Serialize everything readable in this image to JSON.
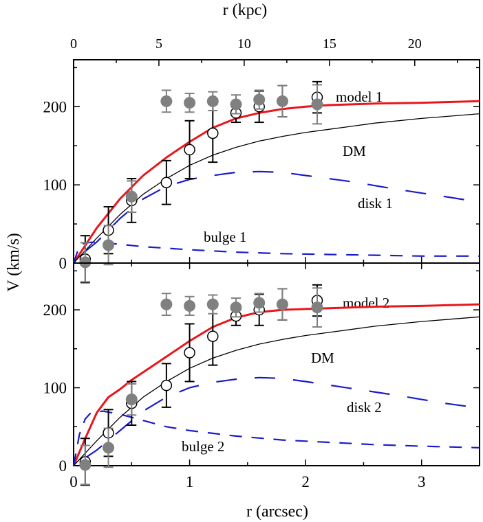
{
  "chart_data": {
    "type": "line",
    "layout": "two vertically stacked panels sharing x axes",
    "x_bottom": {
      "label": "r (arcsec)",
      "range": [
        0,
        3.5
      ],
      "ticks": [
        "0",
        "1",
        "2",
        "3"
      ]
    },
    "x_top": {
      "label": "r (kpc)",
      "range_arcsec_equiv": [
        0,
        3.5
      ],
      "kpc_per_arcsec": 6.8,
      "ticks": [
        "0",
        "5",
        "10",
        "15",
        "20"
      ]
    },
    "y_axis": {
      "label": "V (km/s)",
      "range": [
        0,
        260
      ],
      "ticks": [
        "0",
        "100",
        "200"
      ]
    },
    "panels": [
      {
        "id": "panel-1",
        "series": [
          {
            "name": "model 1",
            "style": "thick-red-solid",
            "color": "#e8161b",
            "x": [
              0,
              0.2,
              0.4,
              0.6,
              0.8,
              1.0,
              1.2,
              1.4,
              1.6,
              1.8,
              2.0,
              2.2,
              2.6,
              3.0,
              3.5
            ],
            "y": [
              0,
              45,
              82,
              112,
              135,
              155,
              173,
              185,
              192,
              197,
              200,
              202,
              204,
              205,
              207
            ]
          },
          {
            "name": "DM",
            "style": "thin-black-solid",
            "color": "#000000",
            "x": [
              0,
              0.2,
              0.4,
              0.6,
              0.8,
              1.0,
              1.2,
              1.4,
              1.6,
              1.8,
              2.0,
              2.2,
              2.6,
              3.0,
              3.5
            ],
            "y": [
              0,
              32,
              62,
              88,
              108,
              125,
              138,
              148,
              156,
              162,
              167,
              171,
              179,
              185,
              191
            ]
          },
          {
            "name": "disk 1",
            "style": "long-dash-blue",
            "color": "#1a1acc",
            "x": [
              0.1,
              0.2,
              0.4,
              0.6,
              0.8,
              1.0,
              1.2,
              1.4,
              1.6,
              1.8,
              2.0,
              2.4,
              2.8,
              3.2,
              3.5
            ],
            "y": [
              15,
              27,
              57,
              82,
              98,
              107,
              112,
              116,
              117,
              116,
              112,
              104,
              94,
              85,
              78
            ]
          },
          {
            "name": "bulge 1",
            "style": "dash-blue",
            "color": "#1a1acc",
            "x": [
              0,
              0.05,
              0.1,
              0.2,
              0.4,
              0.6,
              0.8,
              1.0,
              1.4,
              1.8,
              2.2,
              2.6,
              3.0,
              3.5
            ],
            "y": [
              0,
              22,
              26,
              27,
              24,
              21,
              19,
              17,
              14,
              12,
              11,
              10,
              9,
              9
            ]
          }
        ],
        "points_open": {
          "name": "open circles",
          "x": [
            0.1,
            0.3,
            0.5,
            0.8,
            1.0,
            1.2,
            1.4,
            1.6,
            1.8,
            2.1
          ],
          "y": [
            5,
            42,
            80,
            103,
            145,
            166,
            192,
            200,
            207,
            212
          ],
          "err": [
            30,
            30,
            28,
            28,
            37,
            37,
            12,
            20,
            20,
            20
          ]
        },
        "points_filled": {
          "name": "filled circles",
          "x": [
            0.1,
            0.3,
            0.5,
            0.8,
            1.0,
            1.2,
            1.4,
            1.6,
            1.8,
            2.1
          ],
          "y": [
            1,
            23,
            85,
            207,
            205,
            207,
            203,
            209,
            207,
            203
          ],
          "err": [
            25,
            25,
            20,
            14,
            12,
            12,
            12,
            12,
            20,
            25
          ]
        },
        "annotations": [
          "model 1",
          "DM",
          "disk 1",
          "bulge 1"
        ]
      },
      {
        "id": "panel-2",
        "series": [
          {
            "name": "model 2",
            "style": "thick-red-solid",
            "color": "#e8161b",
            "x": [
              0,
              0.1,
              0.2,
              0.3,
              0.4,
              0.5,
              0.8,
              1.0,
              1.2,
              1.4,
              1.6,
              1.8,
              2.0,
              2.2,
              2.6,
              3.0,
              3.5
            ],
            "y": [
              0,
              35,
              68,
              88,
              98,
              110,
              140,
              160,
              178,
              190,
              197,
              200,
              201,
              202,
              204,
              205,
              207
            ]
          },
          {
            "name": "DM",
            "style": "thin-black-solid",
            "color": "#000000",
            "x": [
              0,
              0.2,
              0.4,
              0.6,
              0.8,
              1.0,
              1.2,
              1.4,
              1.6,
              1.8,
              2.0,
              2.2,
              2.6,
              3.0,
              3.5
            ],
            "y": [
              0,
              32,
              62,
              88,
              108,
              125,
              138,
              148,
              156,
              162,
              167,
              171,
              179,
              185,
              191
            ]
          },
          {
            "name": "disk 2",
            "style": "long-dash-blue",
            "color": "#1a1acc",
            "x": [
              0.1,
              0.2,
              0.4,
              0.6,
              0.8,
              1.0,
              1.2,
              1.4,
              1.6,
              1.8,
              2.0,
              2.4,
              2.8,
              3.2,
              3.5
            ],
            "y": [
              10,
              20,
              45,
              70,
              88,
              100,
              107,
              111,
              113,
              112,
              108,
              99,
              90,
              80,
              74
            ]
          },
          {
            "name": "bulge 2",
            "style": "dash-blue",
            "color": "#1a1acc",
            "x": [
              0,
              0.05,
              0.1,
              0.15,
              0.25,
              0.4,
              0.6,
              0.8,
              1.0,
              1.4,
              1.8,
              2.2,
              2.6,
              3.0,
              3.5
            ],
            "y": [
              0,
              40,
              60,
              68,
              70,
              66,
              58,
              50,
              45,
              38,
              33,
              30,
              27,
              25,
              23
            ]
          }
        ],
        "points_open": {
          "name": "open circles",
          "x": [
            0.1,
            0.3,
            0.5,
            0.8,
            1.0,
            1.2,
            1.4,
            1.6,
            1.8,
            2.1
          ],
          "y": [
            5,
            42,
            80,
            103,
            145,
            166,
            192,
            200,
            207,
            212
          ],
          "err": [
            30,
            30,
            28,
            28,
            37,
            37,
            12,
            20,
            20,
            20
          ]
        },
        "points_filled": {
          "name": "filled circles",
          "x": [
            0.1,
            0.3,
            0.5,
            0.8,
            1.0,
            1.2,
            1.4,
            1.6,
            1.8,
            2.1
          ],
          "y": [
            1,
            23,
            85,
            207,
            205,
            207,
            203,
            209,
            207,
            203
          ],
          "err": [
            25,
            25,
            20,
            14,
            12,
            12,
            12,
            12,
            20,
            25
          ]
        },
        "annotations": [
          "model 2",
          "DM",
          "disk 2",
          "bulge 2"
        ]
      }
    ],
    "colors": {
      "model": "#e8161b",
      "dm": "#000000",
      "components": "#1a1acc",
      "filled_points": "#808080",
      "open_points": "#000000"
    }
  }
}
